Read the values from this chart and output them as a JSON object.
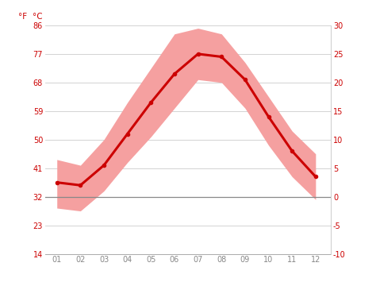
{
  "months": [
    1,
    2,
    3,
    4,
    5,
    6,
    7,
    8,
    9,
    10,
    11,
    12
  ],
  "month_labels": [
    "01",
    "02",
    "03",
    "04",
    "05",
    "06",
    "07",
    "08",
    "09",
    "10",
    "11",
    "12"
  ],
  "avg_temp_c": [
    2.5,
    2.0,
    5.5,
    11.0,
    16.5,
    21.5,
    25.0,
    24.5,
    20.5,
    14.0,
    8.0,
    3.5
  ],
  "max_temp_c": [
    6.5,
    5.5,
    10.0,
    16.5,
    22.5,
    28.5,
    29.5,
    28.5,
    23.5,
    17.5,
    11.5,
    7.5
  ],
  "min_temp_c": [
    -2.0,
    -2.5,
    1.0,
    6.0,
    10.5,
    15.5,
    20.5,
    20.0,
    15.5,
    9.0,
    3.5,
    -0.5
  ],
  "line_color": "#cc0000",
  "band_color": "#f5a0a0",
  "zero_line_color": "#888888",
  "grid_color": "#cccccc",
  "tick_color_red": "#cc0000",
  "tick_color_gray": "#888888",
  "background_color": "#ffffff",
  "ylim_c": [
    -10,
    30
  ],
  "yticks_c": [
    -10,
    -5,
    0,
    5,
    10,
    15,
    20,
    25,
    30
  ],
  "yticks_f": [
    14,
    23,
    32,
    41,
    50,
    59,
    68,
    77,
    86
  ],
  "ylabel_f": "°F",
  "ylabel_c": "°C",
  "line_width": 2.2,
  "band_alpha": 1.0
}
